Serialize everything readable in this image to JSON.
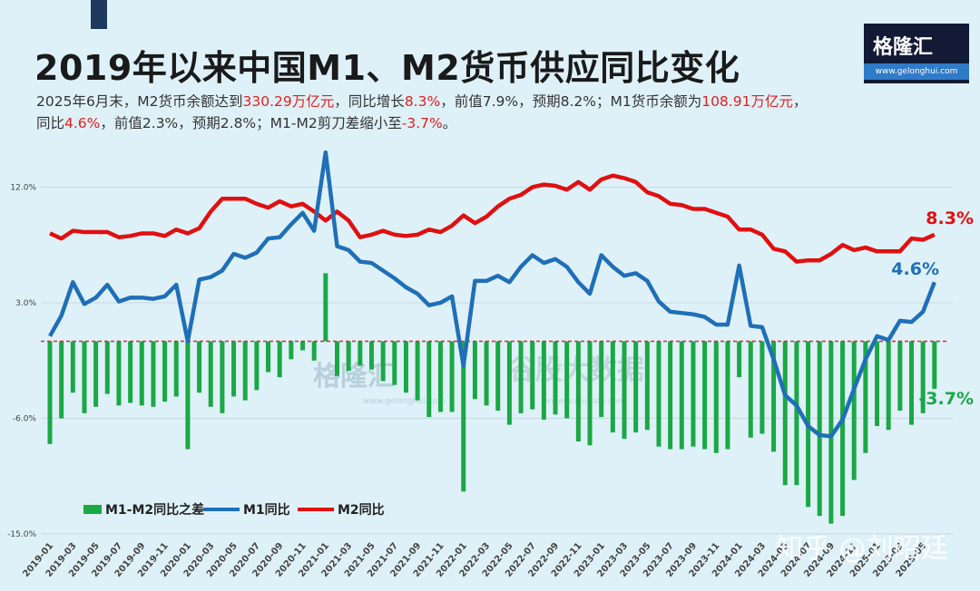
{
  "title": "2019年以来中国M1、M2货币供应同比变化",
  "subtitle": {
    "line1": [
      {
        "t": "2025年6月末，M2货币余额达到"
      },
      {
        "t": "330.29万亿元",
        "red": true
      },
      {
        "t": "，同比增长"
      },
      {
        "t": "8.3%",
        "red": true
      },
      {
        "t": "，前值7.9%，预期8.2%；M1货币余额为"
      },
      {
        "t": "108.91万亿元",
        "red": true
      },
      {
        "t": "，"
      }
    ],
    "line2": [
      {
        "t": "同比"
      },
      {
        "t": "4.6%",
        "red": true
      },
      {
        "t": "，前值2.3%，预期2.8%；M1-M2剪刀差缩小至"
      },
      {
        "t": "-3.7%",
        "red": true
      },
      {
        "t": "。"
      }
    ]
  },
  "logo": {
    "name": "格隆汇",
    "url": "www.gelonghui.com"
  },
  "watermarks": [
    "格隆汇 www.gelonghui.com",
    "谷股大数据 www.gugudata.com",
    "知乎 @刘昭廷"
  ],
  "colors": {
    "m1": "#1f6fb8",
    "m2": "#e01010",
    "diff": "#1aa845",
    "zero_line": "#d03030"
  },
  "chart_data": {
    "type": "bar+line",
    "ylim": [
      -15,
      15
    ],
    "yticks": [
      "12.0%",
      "3.0%",
      "-6.0%",
      "-15.0%"
    ],
    "ytick_values": [
      12,
      3,
      -6,
      -15
    ],
    "grid": true,
    "legend_placement": "bottom-left",
    "x": [
      "2019-01",
      "2019-02",
      "2019-03",
      "2019-04",
      "2019-05",
      "2019-06",
      "2019-07",
      "2019-08",
      "2019-09",
      "2019-10",
      "2019-11",
      "2019-12",
      "2020-01",
      "2020-02",
      "2020-03",
      "2020-04",
      "2020-05",
      "2020-06",
      "2020-07",
      "2020-08",
      "2020-09",
      "2020-10",
      "2020-11",
      "2020-12",
      "2021-01",
      "2021-02",
      "2021-03",
      "2021-04",
      "2021-05",
      "2021-06",
      "2021-07",
      "2021-08",
      "2021-09",
      "2021-10",
      "2021-11",
      "2021-12",
      "2022-01",
      "2022-02",
      "2022-03",
      "2022-04",
      "2022-05",
      "2022-06",
      "2022-07",
      "2022-08",
      "2022-09",
      "2022-10",
      "2022-11",
      "2022-12",
      "2023-01",
      "2023-02",
      "2023-03",
      "2023-04",
      "2023-05",
      "2023-06",
      "2023-07",
      "2023-08",
      "2023-09",
      "2023-10",
      "2023-11",
      "2023-12",
      "2024-01",
      "2024-02",
      "2024-03",
      "2024-04",
      "2024-05",
      "2024-06",
      "2024-07",
      "2024-08",
      "2024-09",
      "2024-10",
      "2024-11",
      "2024-12",
      "2025-01",
      "2025-02",
      "2025-03",
      "2025-04",
      "2025-05",
      "2025-06"
    ],
    "series": [
      {
        "name": "M1-M2同比之差",
        "type": "bar",
        "values": [
          -8.0,
          -6.0,
          -4.0,
          -5.6,
          -5.1,
          -4.1,
          -5.0,
          -4.8,
          -5.0,
          -5.1,
          -4.7,
          -4.3,
          -8.4,
          -4.0,
          -5.1,
          -5.6,
          -4.3,
          -4.6,
          -3.8,
          -2.4,
          -2.8,
          -1.4,
          -0.7,
          -1.5,
          5.3,
          -2.7,
          -2.3,
          -1.9,
          -2.2,
          -3.1,
          -3.4,
          -4.0,
          -4.6,
          -5.9,
          -5.5,
          -5.5,
          -11.7,
          -4.5,
          -5.0,
          -5.4,
          -6.5,
          -5.6,
          -5.3,
          -6.1,
          -5.7,
          -6.0,
          -7.8,
          -8.1,
          -5.9,
          -7.1,
          -7.6,
          -7.1,
          -6.9,
          -8.2,
          -8.4,
          -8.4,
          -8.2,
          -8.4,
          -8.7,
          -8.4,
          -2.8,
          -7.5,
          -7.2,
          -8.6,
          -11.2,
          -11.2,
          -12.9,
          -13.6,
          -14.2,
          -13.6,
          -10.8,
          -8.7,
          -6.6,
          -6.9,
          -5.4,
          -6.5,
          -5.6,
          -3.7
        ]
      },
      {
        "name": "M1同比",
        "type": "line",
        "values": [
          0.4,
          2.0,
          4.6,
          2.9,
          3.4,
          4.4,
          3.1,
          3.4,
          3.4,
          3.3,
          3.5,
          4.4,
          0.0,
          4.8,
          5.0,
          5.5,
          6.8,
          6.5,
          6.9,
          8.0,
          8.1,
          9.1,
          10.0,
          8.6,
          14.7,
          7.4,
          7.1,
          6.2,
          6.1,
          5.5,
          4.9,
          4.2,
          3.7,
          2.8,
          3.0,
          3.5,
          -1.9,
          4.7,
          4.7,
          5.1,
          4.6,
          5.8,
          6.7,
          6.1,
          6.4,
          5.8,
          4.6,
          3.7,
          6.7,
          5.8,
          5.1,
          5.3,
          4.7,
          3.1,
          2.3,
          2.2,
          2.1,
          1.9,
          1.3,
          1.3,
          5.9,
          1.2,
          1.1,
          -1.4,
          -4.2,
          -5.0,
          -6.6,
          -7.3,
          -7.4,
          -6.1,
          -3.7,
          -1.4,
          0.4,
          0.1,
          1.6,
          1.5,
          2.3,
          4.6
        ]
      },
      {
        "name": "M2同比",
        "type": "line",
        "values": [
          8.4,
          8.0,
          8.6,
          8.5,
          8.5,
          8.5,
          8.1,
          8.2,
          8.4,
          8.4,
          8.2,
          8.7,
          8.4,
          8.8,
          10.1,
          11.1,
          11.1,
          11.1,
          10.7,
          10.4,
          10.9,
          10.5,
          10.7,
          10.1,
          9.4,
          10.1,
          9.4,
          8.1,
          8.3,
          8.6,
          8.3,
          8.2,
          8.3,
          8.7,
          8.5,
          9.0,
          9.8,
          9.2,
          9.7,
          10.5,
          11.1,
          11.4,
          12.0,
          12.2,
          12.1,
          11.8,
          12.4,
          11.8,
          12.6,
          12.9,
          12.7,
          12.4,
          11.6,
          11.3,
          10.7,
          10.6,
          10.3,
          10.3,
          10.0,
          9.7,
          8.7,
          8.7,
          8.3,
          7.2,
          7.0,
          6.2,
          6.3,
          6.3,
          6.8,
          7.5,
          7.1,
          7.3,
          7.0,
          7.0,
          7.0,
          8.0,
          7.9,
          8.3
        ]
      }
    ],
    "end_labels": {
      "m2": "8.3%",
      "m1": "4.6%",
      "diff": "-3.7%"
    }
  }
}
